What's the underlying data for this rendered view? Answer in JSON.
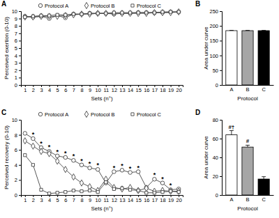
{
  "chart_data": [
    {
      "type": "line",
      "title": "A",
      "x_label": "Sets (n°)",
      "y_label": "Perceived exertion (0-10)",
      "categories": [
        "1",
        "2",
        "3",
        "4",
        "5",
        "6",
        "7",
        "8",
        "9",
        "10",
        "11",
        "12",
        "13",
        "14",
        "15",
        "16",
        "17",
        "18",
        "19",
        "20"
      ],
      "series": [
        {
          "name": "Protocol A",
          "color": "#444444",
          "marker": "circle",
          "values": [
            9.3,
            9.2,
            9.3,
            9.0,
            9.4,
            9.1,
            9.6,
            9.6,
            9.7,
            9.7,
            9.7,
            9.6,
            9.7,
            9.7,
            9.8,
            9.8,
            9.8,
            9.8,
            9.9,
            9.9
          ]
        },
        {
          "name": "Protocol B",
          "color": "#444444",
          "marker": "diamond",
          "values": [
            9.2,
            9.2,
            9.3,
            9.3,
            9.3,
            9.4,
            9.5,
            9.6,
            9.6,
            9.7,
            9.7,
            9.7,
            9.7,
            9.7,
            9.7,
            9.7,
            9.8,
            9.8,
            9.8,
            9.9
          ]
        },
        {
          "name": "Protocol C",
          "color": "#444444",
          "marker": "square",
          "values": [
            9.2,
            9.3,
            9.4,
            9.4,
            9.5,
            9.5,
            9.6,
            9.6,
            9.7,
            9.7,
            9.7,
            9.8,
            9.8,
            9.8,
            9.8,
            9.8,
            9.8,
            9.9,
            9.9,
            9.9
          ]
        }
      ],
      "ylim": [
        0,
        10
      ],
      "yticks": [
        0,
        1,
        2,
        3,
        4,
        5,
        6,
        7,
        8,
        9,
        10
      ],
      "legend": "top"
    },
    {
      "type": "bar",
      "title": "B",
      "x_label": "Protocol",
      "y_label": "Area under curve",
      "categories": [
        "A",
        "B",
        "C"
      ],
      "values": [
        184,
        184,
        184
      ],
      "errors": [
        1,
        1,
        1
      ],
      "colors": [
        "#ffffff",
        "#a6a6a6",
        "#000000"
      ],
      "ylim": [
        0,
        250
      ],
      "yticks": [
        0,
        50,
        100,
        150,
        200,
        250
      ]
    },
    {
      "type": "line",
      "title": "C",
      "x_label": "Sets (n°)",
      "y_label": "Perceived recovery (0-10)",
      "categories": [
        "1",
        "2",
        "3",
        "4",
        "5",
        "6",
        "7",
        "8",
        "9",
        "10",
        "11",
        "12",
        "13",
        "14",
        "15",
        "16",
        "17",
        "18",
        "19",
        "20"
      ],
      "series": [
        {
          "name": "Protocol A",
          "color": "#444444",
          "marker": "circle",
          "values": [
            8.2,
            7.5,
            6.3,
            5.8,
            5.2,
            5.0,
            4.6,
            4.0,
            3.6,
            3.4,
            1.6,
            3.1,
            3.3,
            3.0,
            3.1,
            1.0,
            2.1,
            1.6,
            0.7,
            0.8
          ]
        },
        {
          "name": "Protocol B",
          "color": "#444444",
          "marker": "diamond",
          "values": [
            7.2,
            6.5,
            5.8,
            5.5,
            4.5,
            3.4,
            2.4,
            1.6,
            1.1,
            0.6,
            2.1,
            1.0,
            0.8,
            1.0,
            0.6,
            0.9,
            0.5,
            0.6,
            0.5,
            0.5
          ]
        },
        {
          "name": "Protocol C",
          "color": "#444444",
          "marker": "square",
          "values": [
            5.3,
            4.0,
            0.7,
            0.2,
            0.3,
            0.4,
            0.6,
            0.5,
            0.6,
            0.4,
            1.7,
            0.8,
            0.9,
            0.7,
            0.6,
            0.3,
            0.3,
            0.4,
            0.5,
            0.4
          ]
        }
      ],
      "ylim": [
        0,
        10
      ],
      "yticks": [
        0,
        2,
        4,
        6,
        8,
        10
      ],
      "legend": "top",
      "annotations": [
        {
          "x": "2",
          "text": "*"
        },
        {
          "x": "3",
          "text": "*"
        },
        {
          "x": "4",
          "text": "*"
        },
        {
          "x": "5",
          "text": "*"
        },
        {
          "x": "6",
          "text": "*"
        },
        {
          "x": "7",
          "text": "*"
        },
        {
          "x": "8",
          "text": "*"
        },
        {
          "x": "9",
          "text": "*"
        },
        {
          "x": "10",
          "text": "*"
        },
        {
          "x": "12",
          "text": "*"
        },
        {
          "x": "13",
          "text": "*"
        },
        {
          "x": "14",
          "text": "*"
        },
        {
          "x": "15",
          "text": "*"
        },
        {
          "x": "17",
          "text": "*"
        },
        {
          "x": "18",
          "text": "*"
        },
        {
          "x": "19",
          "text": "*"
        }
      ]
    },
    {
      "type": "bar",
      "title": "D",
      "x_label": "Protocol",
      "y_label": "Area under curve",
      "categories": [
        "A",
        "B",
        "C"
      ],
      "values": [
        64,
        51,
        17
      ],
      "errors": [
        4.5,
        2,
        2.5
      ],
      "colors": [
        "#ffffff",
        "#a6a6a6",
        "#000000"
      ],
      "ylim": [
        0,
        80
      ],
      "yticks": [
        0,
        20,
        40,
        60,
        80
      ],
      "annotations": [
        {
          "x": "A",
          "text": "#†"
        },
        {
          "x": "B",
          "text": "#"
        }
      ]
    }
  ]
}
